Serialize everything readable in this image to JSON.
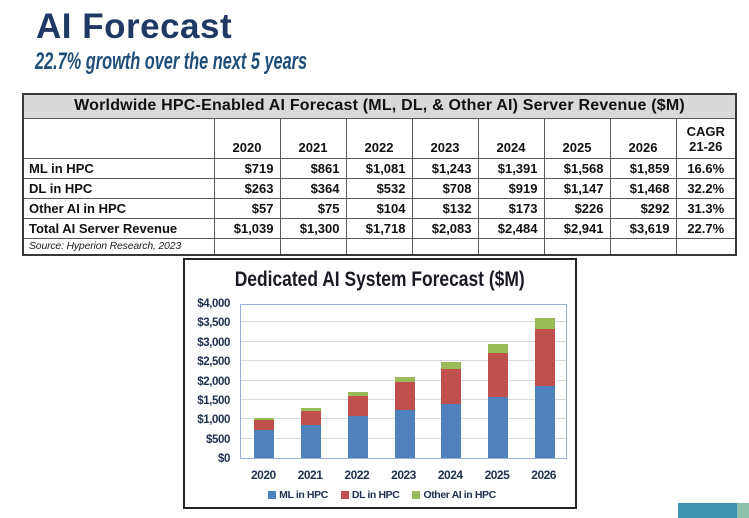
{
  "page": {
    "title": "AI Forecast",
    "subtitle": "22.7% growth over the next 5 years"
  },
  "table": {
    "title": "Worldwide HPC-Enabled AI Forecast (ML, DL, & Other AI) Server Revenue ($M)",
    "year_columns": [
      "2020",
      "2021",
      "2022",
      "2023",
      "2024",
      "2025",
      "2026"
    ],
    "cagr_header": "CAGR\n21-26",
    "rows": [
      {
        "label": "ML in HPC",
        "values": [
          "$719",
          "$861",
          "$1,081",
          "$1,243",
          "$1,391",
          "$1,568",
          "$1,859"
        ],
        "cagr": "16.6%"
      },
      {
        "label": "DL in HPC",
        "values": [
          "$263",
          "$364",
          "$532",
          "$708",
          "$919",
          "$1,147",
          "$1,468"
        ],
        "cagr": "32.2%"
      },
      {
        "label": "Other AI in HPC",
        "values": [
          "$57",
          "$75",
          "$104",
          "$132",
          "$173",
          "$226",
          "$292"
        ],
        "cagr": "31.3%"
      },
      {
        "label": "Total AI Server Revenue",
        "values": [
          "$1,039",
          "$1,300",
          "$1,718",
          "$2,083",
          "$2,484",
          "$2,941",
          "$3,619"
        ],
        "cagr": "22.7%"
      }
    ],
    "source": "Source: Hyperion Research, 2023"
  },
  "chart_data": {
    "type": "bar",
    "stacked": true,
    "title": "Dedicated AI System Forecast ($M)",
    "categories": [
      "2020",
      "2021",
      "2022",
      "2023",
      "2024",
      "2025",
      "2026"
    ],
    "series": [
      {
        "name": "ML in HPC",
        "color": "#4F81BD",
        "values": [
          719,
          861,
          1081,
          1243,
          1391,
          1568,
          1859
        ]
      },
      {
        "name": "DL in HPC",
        "color": "#C0504D",
        "values": [
          263,
          364,
          532,
          708,
          919,
          1147,
          1468
        ]
      },
      {
        "name": "Other AI in HPC",
        "color": "#9BBB59",
        "values": [
          57,
          75,
          104,
          132,
          173,
          226,
          292
        ]
      }
    ],
    "ylim": [
      0,
      4000
    ],
    "ytick_step": 500,
    "ytick_labels": [
      "$0",
      "$500",
      "$1,000",
      "$1,500",
      "$2,000",
      "$2,500",
      "$3,000",
      "$3,500",
      "$4,000"
    ],
    "grid": true,
    "legend_position": "bottom"
  },
  "decor": {
    "accent_color_main": "#3E96B3",
    "accent_color_tip": "#8FC0AC"
  }
}
